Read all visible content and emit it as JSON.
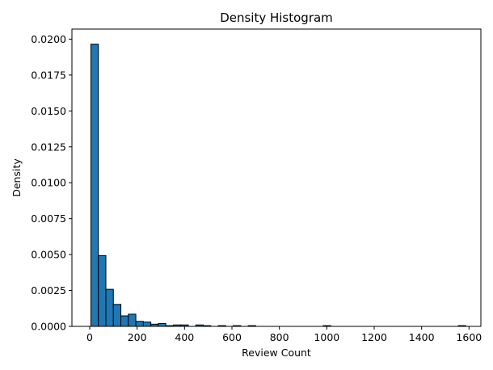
{
  "chart_data": {
    "type": "bar",
    "title": "Density Histogram",
    "xlabel": "Review Count",
    "ylabel": "Density",
    "xlim": [
      -75,
      1650
    ],
    "ylim": [
      0,
      0.0207
    ],
    "xticks": [
      0,
      200,
      400,
      600,
      800,
      1000,
      1200,
      1400,
      1600
    ],
    "yticks": [
      "0.0000",
      "0.0025",
      "0.0050",
      "0.0075",
      "0.0100",
      "0.0125",
      "0.0150",
      "0.0175",
      "0.0200"
    ],
    "bin_width": 31.6,
    "bar_color": "#1f77b4",
    "edge_color": "#000000",
    "grid": false,
    "bins": [
      {
        "x0": 5.0,
        "density": 0.01965
      },
      {
        "x0": 36.6,
        "density": 0.00493
      },
      {
        "x0": 68.2,
        "density": 0.00258
      },
      {
        "x0": 99.8,
        "density": 0.00153
      },
      {
        "x0": 131.4,
        "density": 0.00073
      },
      {
        "x0": 163.0,
        "density": 0.00085
      },
      {
        "x0": 194.6,
        "density": 0.00035
      },
      {
        "x0": 226.2,
        "density": 0.0003
      },
      {
        "x0": 257.8,
        "density": 0.00015
      },
      {
        "x0": 289.4,
        "density": 0.0002
      },
      {
        "x0": 321.0,
        "density": 5e-05
      },
      {
        "x0": 352.6,
        "density": 0.0001
      },
      {
        "x0": 384.2,
        "density": 0.0001
      },
      {
        "x0": 415.8,
        "density": 0.0
      },
      {
        "x0": 447.4,
        "density": 0.0001
      },
      {
        "x0": 479.0,
        "density": 5e-05
      },
      {
        "x0": 510.6,
        "density": 0.0
      },
      {
        "x0": 542.2,
        "density": 5e-05
      },
      {
        "x0": 573.8,
        "density": 0.0
      },
      {
        "x0": 605.4,
        "density": 5e-05
      },
      {
        "x0": 637.0,
        "density": 0.0
      },
      {
        "x0": 668.6,
        "density": 5e-05
      },
      {
        "x0": 700.2,
        "density": 0.0
      },
      {
        "x0": 985.0,
        "density": 5e-05
      },
      {
        "x0": 1555.0,
        "density": 5e-05
      }
    ]
  }
}
